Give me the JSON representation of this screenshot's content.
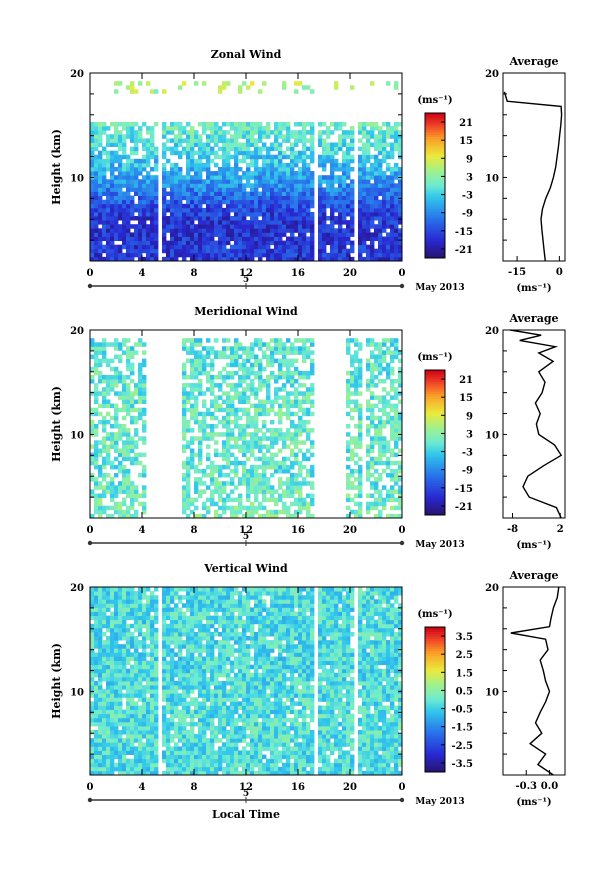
{
  "chart_data": [
    {
      "type": "heatmap",
      "title": "Zonal Wind",
      "ylabel": "Height (km)",
      "xlabel": "",
      "ylim": [
        2,
        20
      ],
      "xlim": [
        0,
        24
      ],
      "y_ticks": [
        "20",
        "10"
      ],
      "x_ticks": [
        "0",
        "4",
        "8",
        "12",
        "16",
        "20",
        "0"
      ],
      "date_label": "5",
      "month_label": "May 2013",
      "colorbar": {
        "unit": "(ms⁻¹)",
        "ticks": [
          "21",
          "15",
          "9",
          "3",
          "-3",
          "-9",
          "-15",
          "-21"
        ],
        "range": [
          -24,
          24
        ]
      },
      "field": {
        "surface_value": -16,
        "top_value": 1,
        "lower_trough": -15
      },
      "gaps_hours": [
        5.2,
        5.4,
        17.2,
        17.4,
        20.2,
        20.4,
        21.6,
        21.8,
        22.8,
        23.0,
        24
      ],
      "data_top_km": 15,
      "average": {
        "title": "Average",
        "unit": "(ms⁻¹)",
        "xlim": [
          -20,
          2
        ],
        "x_ticks": [
          "-15",
          "0"
        ],
        "y_ticks": [
          "20",
          "10"
        ],
        "profile": [
          {
            "h": 2.0,
            "v": -5.0
          },
          {
            "h": 3.0,
            "v": -5.4
          },
          {
            "h": 4.0,
            "v": -5.8
          },
          {
            "h": 5.0,
            "v": -6.2
          },
          {
            "h": 6.0,
            "v": -6.5
          },
          {
            "h": 7.0,
            "v": -6.0
          },
          {
            "h": 8.0,
            "v": -4.8
          },
          {
            "h": 9.0,
            "v": -3.2
          },
          {
            "h": 10.0,
            "v": -2.1
          },
          {
            "h": 11.0,
            "v": -1.3
          },
          {
            "h": 12.0,
            "v": -0.8
          },
          {
            "h": 13.0,
            "v": -0.3
          },
          {
            "h": 14.0,
            "v": 0.1
          },
          {
            "h": 15.0,
            "v": 0.5
          },
          {
            "h": 16.0,
            "v": 0.8
          },
          {
            "h": 16.8,
            "v": 0.6
          },
          {
            "h": 17.3,
            "v": -18.5
          },
          {
            "h": 18.2,
            "v": -19.5
          }
        ]
      }
    },
    {
      "type": "heatmap",
      "title": "Meridional Wind",
      "ylabel": "Height (km)",
      "xlabel": "",
      "ylim": [
        2,
        20
      ],
      "xlim": [
        0,
        24
      ],
      "y_ticks": [
        "20",
        "10"
      ],
      "x_ticks": [
        "0",
        "4",
        "8",
        "12",
        "16",
        "20",
        "0"
      ],
      "date_label": "5",
      "month_label": "May 2013",
      "colorbar": {
        "unit": "(ms⁻¹)",
        "ticks": [
          "21",
          "15",
          "9",
          "3",
          "-3",
          "-9",
          "-15",
          "-21"
        ],
        "range": [
          -24,
          24
        ]
      },
      "field": {
        "surface_value": 2,
        "top_value": -1,
        "lower_trough": -4
      },
      "gaps_hours": [
        4.3,
        6.8,
        17.0,
        19.5,
        20.7,
        21.0,
        24
      ],
      "data_top_km": 19,
      "average": {
        "title": "Average",
        "unit": "(ms⁻¹)",
        "xlim": [
          -10,
          3
        ],
        "x_ticks": [
          "-8",
          "2"
        ],
        "y_ticks": [
          "20",
          "10"
        ],
        "profile": [
          {
            "h": 2.0,
            "v": 2.2
          },
          {
            "h": 3.0,
            "v": 1.2
          },
          {
            "h": 4.0,
            "v": -4.5
          },
          {
            "h": 5.0,
            "v": -5.8
          },
          {
            "h": 6.0,
            "v": -4.8
          },
          {
            "h": 7.0,
            "v": -1.5
          },
          {
            "h": 8.0,
            "v": 2.2
          },
          {
            "h": 9.0,
            "v": 0.8
          },
          {
            "h": 10.0,
            "v": -2.5
          },
          {
            "h": 11.0,
            "v": -3.0
          },
          {
            "h": 12.0,
            "v": -2.2
          },
          {
            "h": 13.0,
            "v": -3.2
          },
          {
            "h": 14.0,
            "v": -1.8
          },
          {
            "h": 15.0,
            "v": -1.2
          },
          {
            "h": 16.0,
            "v": -2.5
          },
          {
            "h": 17.0,
            "v": 0.5
          },
          {
            "h": 17.8,
            "v": -2.5
          },
          {
            "h": 18.4,
            "v": 1.0
          },
          {
            "h": 19.0,
            "v": -6.5
          },
          {
            "h": 19.5,
            "v": -2.0
          },
          {
            "h": 20.0,
            "v": -8.5
          }
        ]
      }
    },
    {
      "type": "heatmap",
      "title": "Vertical Wind",
      "ylabel": "Height (km)",
      "xlabel": "Local Time",
      "ylim": [
        2,
        20
      ],
      "xlim": [
        0,
        24
      ],
      "y_ticks": [
        "20",
        "10"
      ],
      "x_ticks": [
        "0",
        "4",
        "8",
        "12",
        "16",
        "20",
        "0"
      ],
      "date_label": "5",
      "month_label": "May 2013",
      "colorbar": {
        "unit": "(ms⁻¹)",
        "ticks": [
          "3.5",
          "2.5",
          "1.5",
          "0.5",
          "-0.5",
          "-1.5",
          "-2.5",
          "-3.5"
        ],
        "range": [
          -4,
          4
        ]
      },
      "field": {
        "surface_value": -0.3,
        "top_value": -0.3,
        "lower_trough": 0.2
      },
      "gaps_hours": [
        5.2,
        5.4,
        17.2,
        17.4,
        20.2,
        20.4,
        22.8,
        23.0,
        24
      ],
      "data_top_km": 20,
      "average": {
        "title": "Average",
        "unit": "(ms⁻¹)",
        "xlim": [
          -0.6,
          0.2
        ],
        "x_ticks": [
          "-0.3",
          "0.0"
        ],
        "y_ticks": [
          "20",
          "10"
        ],
        "profile": [
          {
            "h": 2.0,
            "v": 0.05
          },
          {
            "h": 3.0,
            "v": -0.15
          },
          {
            "h": 4.0,
            "v": -0.05
          },
          {
            "h": 5.0,
            "v": -0.25
          },
          {
            "h": 6.0,
            "v": -0.1
          },
          {
            "h": 7.0,
            "v": -0.18
          },
          {
            "h": 8.0,
            "v": -0.12
          },
          {
            "h": 9.0,
            "v": -0.05
          },
          {
            "h": 10.0,
            "v": 0.0
          },
          {
            "h": 11.0,
            "v": -0.05
          },
          {
            "h": 12.0,
            "v": -0.08
          },
          {
            "h": 13.0,
            "v": -0.12
          },
          {
            "h": 14.0,
            "v": -0.02
          },
          {
            "h": 15.0,
            "v": -0.05
          },
          {
            "h": 15.6,
            "v": -0.5
          },
          {
            "h": 16.2,
            "v": 0.0
          },
          {
            "h": 17.0,
            "v": 0.02
          },
          {
            "h": 18.0,
            "v": 0.05
          },
          {
            "h": 19.0,
            "v": 0.1
          },
          {
            "h": 20.0,
            "v": 0.12
          }
        ]
      }
    }
  ]
}
